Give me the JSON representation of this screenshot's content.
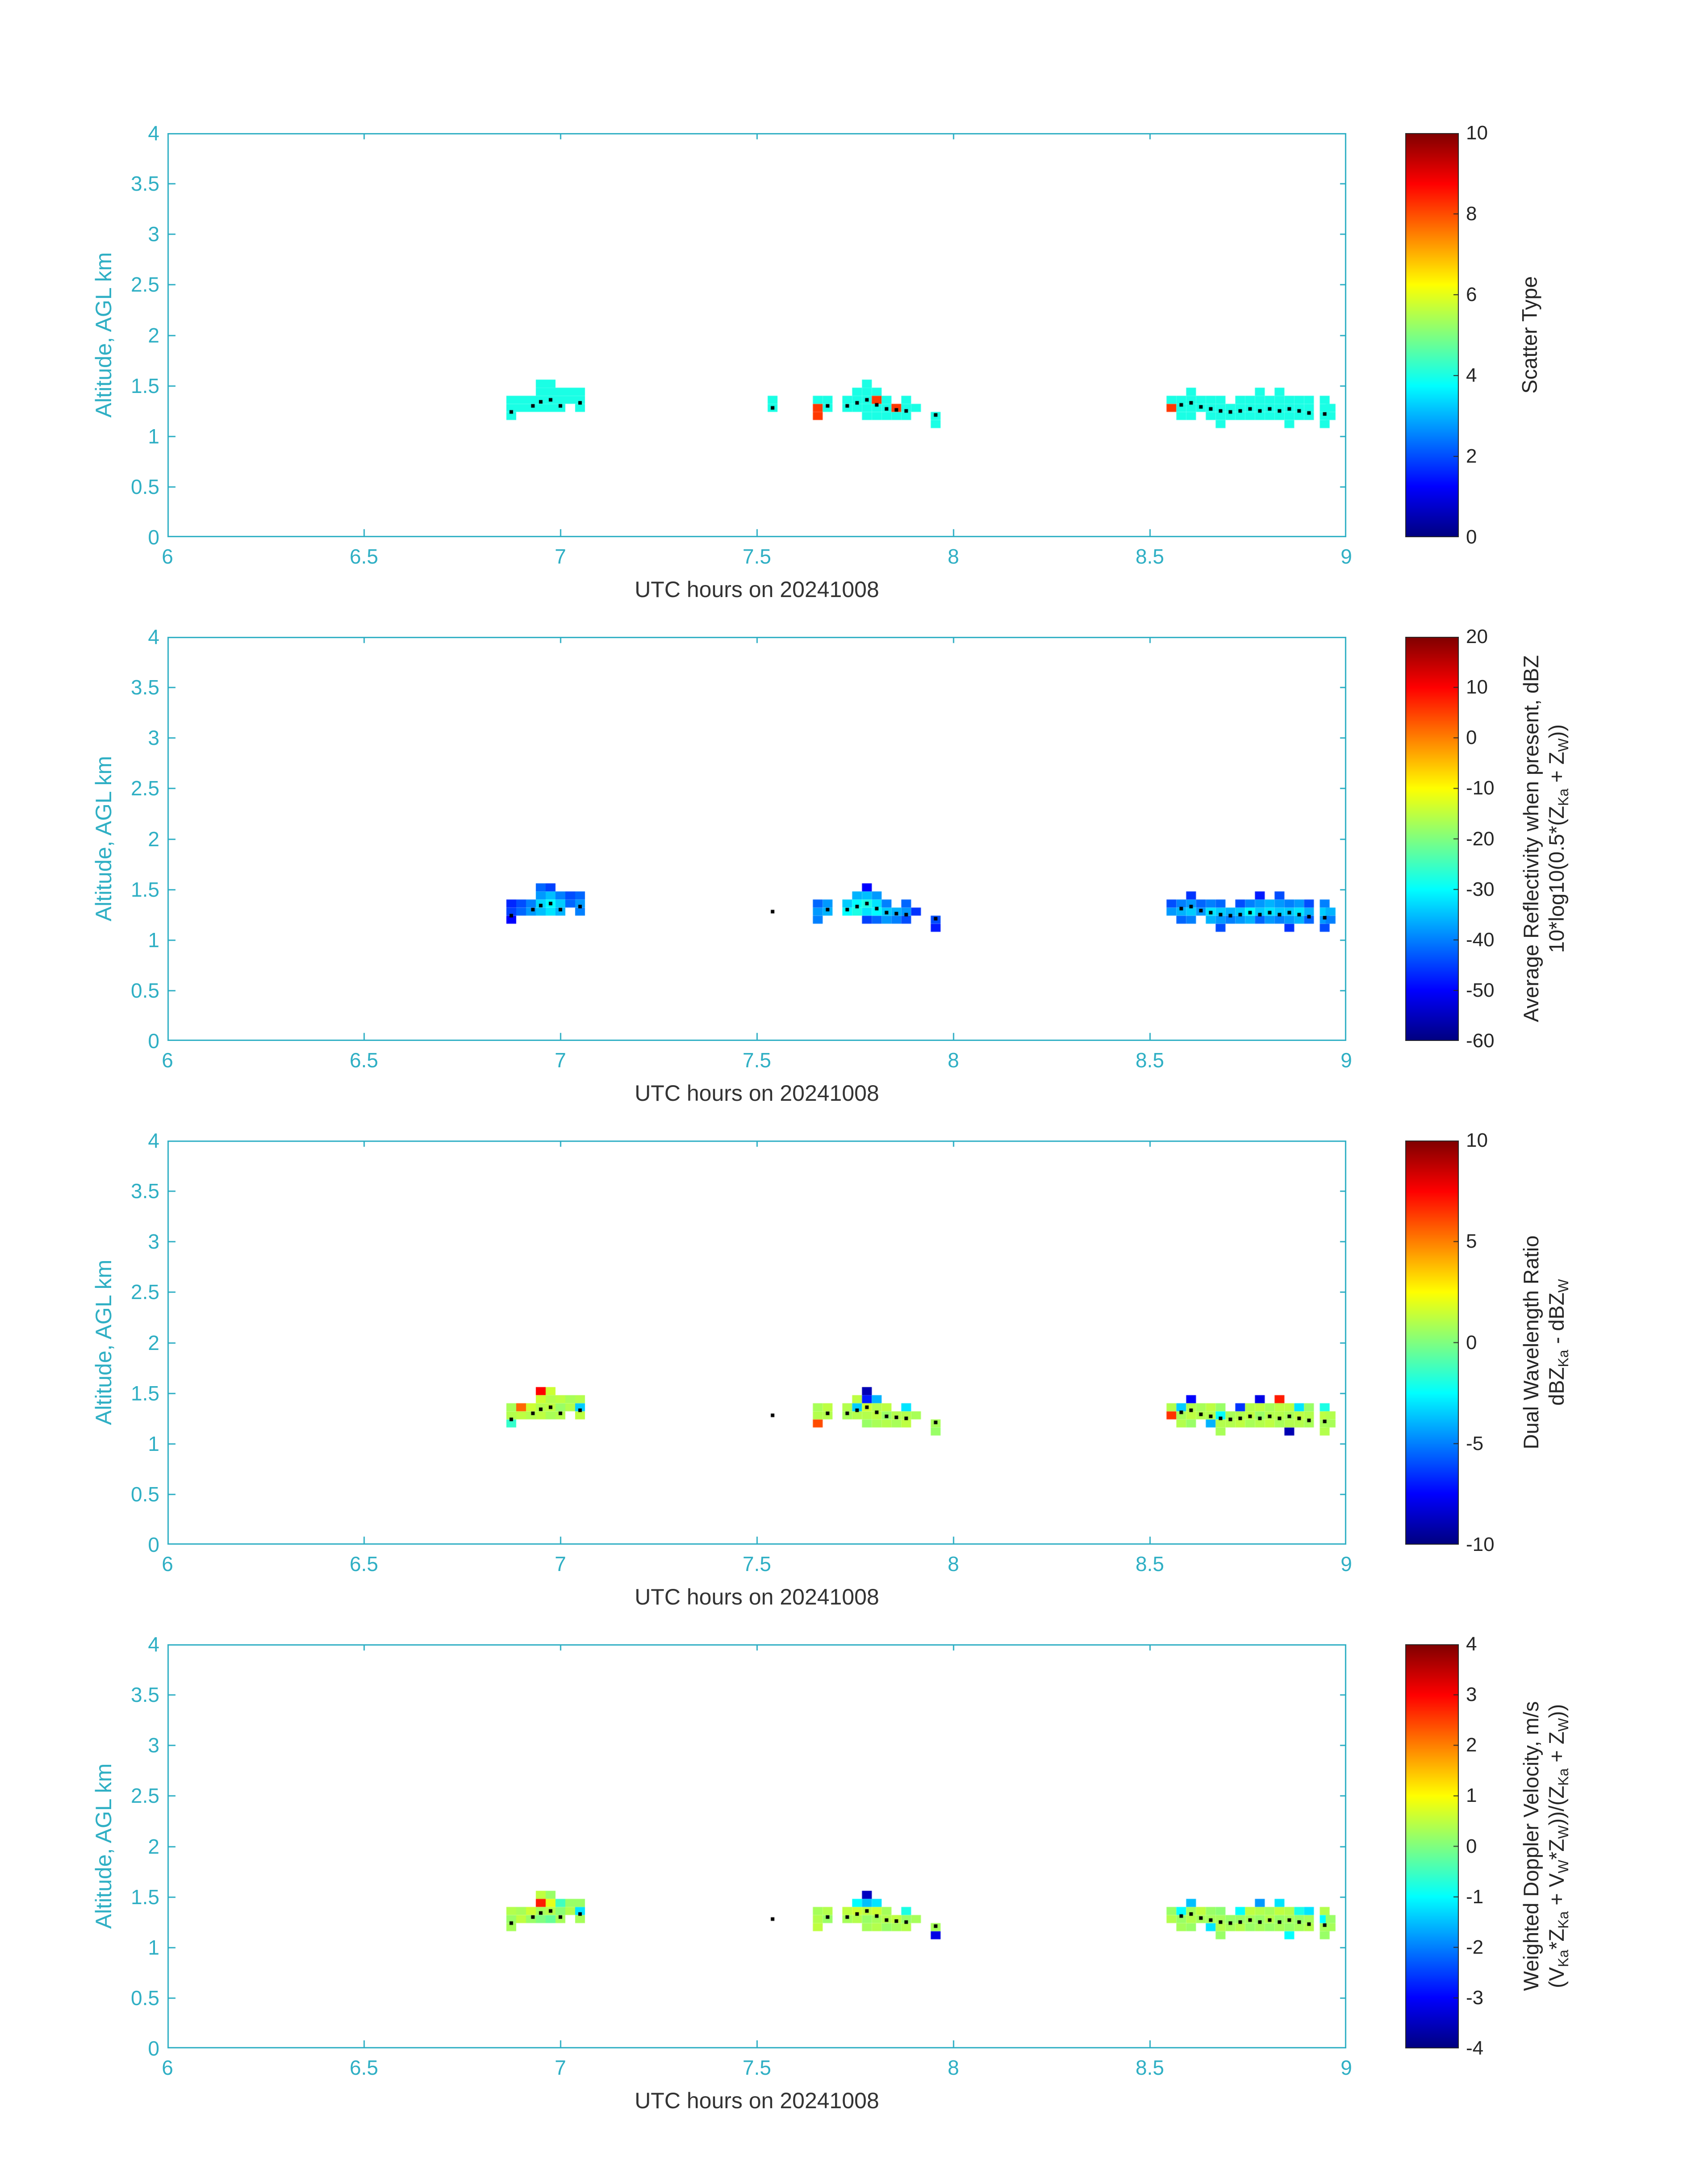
{
  "figure": {
    "background": "#ffffff",
    "axis_color": "#2fafc4",
    "xlabel_color": "#333333",
    "colorbar_text_color": "#262626",
    "dot_color": "#000000"
  },
  "chart_data": {
    "type": "heatmap",
    "x_label": "UTC hours on 20241008",
    "y_label": "Altitude, AGL km",
    "x_lim": [
      6,
      9
    ],
    "y_lim": [
      0,
      4
    ],
    "x_ticks": [
      "6",
      "6.5",
      "7",
      "7.5",
      "8",
      "8.5",
      "9"
    ],
    "x_tick_vals": [
      6,
      6.5,
      7,
      7.5,
      8,
      8.5,
      9
    ],
    "y_ticks": [
      "0",
      "0.5",
      "1",
      "1.5",
      "2",
      "2.5",
      "3",
      "3.5",
      "4"
    ],
    "y_tick_vals": [
      0,
      0.5,
      1,
      1.5,
      2,
      2.5,
      3,
      3.5,
      4
    ],
    "colormap": "jet",
    "cell_size": {
      "dt": 0.025,
      "dz": 0.08
    },
    "panels": [
      {
        "name": "scatter-type",
        "value_index": 2,
        "clim": [
          0,
          10
        ],
        "cticks": [
          "0",
          "2",
          "4",
          "6",
          "8",
          "10"
        ],
        "ctick_vals": [
          0,
          2,
          4,
          6,
          8,
          10
        ],
        "clabel_lines": [
          [
            {
              "t": "Scatter Type"
            }
          ]
        ]
      },
      {
        "name": "average-reflectivity",
        "value_index": 3,
        "clim": [
          -60,
          20
        ],
        "cticks": [
          "-60",
          "-50",
          "-40",
          "-30",
          "-20",
          "-10",
          "0",
          "10",
          "20"
        ],
        "ctick_vals": [
          -60,
          -50,
          -40,
          -30,
          -20,
          -10,
          0,
          10,
          20
        ],
        "clabel_lines": [
          [
            {
              "t": "Average Reflectivity when present, dBZ"
            }
          ],
          [
            {
              "t": "10*log10(0.5*(Z"
            },
            {
              "s": "Ka"
            },
            {
              "t": " + Z"
            },
            {
              "s": "W"
            },
            {
              "t": "))"
            }
          ]
        ]
      },
      {
        "name": "dual-wavelength-ratio",
        "value_index": 4,
        "clim": [
          -10,
          10
        ],
        "cticks": [
          "-10",
          "-5",
          "0",
          "5",
          "10"
        ],
        "ctick_vals": [
          -10,
          -5,
          0,
          5,
          10
        ],
        "clabel_lines": [
          [
            {
              "t": "Dual Wavelength Ratio"
            }
          ],
          [
            {
              "t": "dBZ"
            },
            {
              "s": "Ka"
            },
            {
              "t": " - dBZ"
            },
            {
              "s": "W"
            }
          ]
        ]
      },
      {
        "name": "weighted-doppler-velocity",
        "value_index": 5,
        "clim": [
          -4,
          4
        ],
        "cticks": [
          "-4",
          "-3",
          "-2",
          "-1",
          "0",
          "1",
          "2",
          "3",
          "4"
        ],
        "ctick_vals": [
          -4,
          -3,
          -2,
          -1,
          0,
          1,
          2,
          3,
          4
        ],
        "clabel_lines": [
          [
            {
              "t": "Weighted Doppler Velocity, m/s"
            }
          ],
          [
            {
              "t": "(V"
            },
            {
              "s": "Ka"
            },
            {
              "t": "*Z"
            },
            {
              "s": "Ka"
            },
            {
              "t": " + V"
            },
            {
              "s": "W"
            },
            {
              "t": "*Z"
            },
            {
              "s": "W"
            },
            {
              "t": "))/(Z"
            },
            {
              "s": "Ka"
            },
            {
              "t": " + Z"
            },
            {
              "s": "W"
            },
            {
              "t": "))"
            }
          ]
        ]
      }
    ],
    "cells": [
      [
        6.875,
        1.2,
        4.0,
        -50,
        -1.5,
        0.3
      ],
      [
        6.875,
        1.28,
        4.0,
        -45,
        1.0,
        0.2
      ],
      [
        6.875,
        1.36,
        4.0,
        -47,
        0.8,
        0.4
      ],
      [
        6.9,
        1.28,
        4.0,
        -42,
        1.2,
        0.5
      ],
      [
        6.9,
        1.36,
        4.0,
        -44,
        5.5,
        0.3
      ],
      [
        6.925,
        1.28,
        4.0,
        -38,
        1.0,
        0.2
      ],
      [
        6.925,
        1.36,
        4.0,
        -40,
        1.5,
        0.6
      ],
      [
        6.95,
        1.28,
        4.0,
        -35,
        1.2,
        0.0
      ],
      [
        6.95,
        1.36,
        4.0,
        -33,
        1.0,
        0.3
      ],
      [
        6.95,
        1.44,
        4.0,
        -38,
        1.5,
        2.8
      ],
      [
        6.95,
        1.52,
        4.0,
        -42,
        7.5,
        0.5
      ],
      [
        6.975,
        1.28,
        4.0,
        -32,
        0.8,
        -0.2
      ],
      [
        6.975,
        1.36,
        4.0,
        -30,
        1.2,
        0.4
      ],
      [
        6.975,
        1.44,
        4.0,
        -35,
        1.0,
        0.8
      ],
      [
        6.975,
        1.52,
        4.0,
        -45,
        1.5,
        0.2
      ],
      [
        7.0,
        1.28,
        4.0,
        -36,
        1.0,
        0.3
      ],
      [
        7.0,
        1.36,
        4.0,
        -34,
        0.5,
        0.1
      ],
      [
        7.0,
        1.44,
        4.0,
        -40,
        1.2,
        -0.5
      ],
      [
        7.025,
        1.36,
        4.0,
        -42,
        1.0,
        0.4
      ],
      [
        7.025,
        1.44,
        4.0,
        -44,
        0.8,
        0.2
      ],
      [
        7.05,
        1.28,
        4.0,
        -40,
        1.2,
        0.3
      ],
      [
        7.05,
        1.36,
        4.0,
        -38,
        -3.5,
        -1.2
      ],
      [
        7.05,
        1.44,
        4.0,
        -42,
        1.0,
        0.2
      ],
      [
        7.54,
        1.28,
        4.0,
        null,
        null,
        null
      ],
      [
        7.54,
        1.36,
        4.0,
        null,
        null,
        null
      ],
      [
        7.655,
        1.2,
        8.2,
        -40,
        6.0,
        0.5
      ],
      [
        7.655,
        1.28,
        8.2,
        -38,
        1.0,
        0.4
      ],
      [
        7.655,
        1.36,
        4.0,
        -42,
        0.8,
        0.3
      ],
      [
        7.68,
        1.28,
        4.0,
        -36,
        1.0,
        0.2
      ],
      [
        7.68,
        1.36,
        4.0,
        -38,
        1.2,
        0.4
      ],
      [
        7.73,
        1.28,
        4.0,
        -30,
        0.8,
        0.3
      ],
      [
        7.73,
        1.36,
        4.0,
        -34,
        1.0,
        0.5
      ],
      [
        7.755,
        1.28,
        4.0,
        -28,
        1.0,
        0.4
      ],
      [
        7.755,
        1.36,
        4.0,
        -30,
        -3.5,
        0.6
      ],
      [
        7.755,
        1.44,
        4.0,
        -36,
        1.2,
        -1.0
      ],
      [
        7.78,
        1.2,
        4.0,
        -45,
        0.5,
        0.3
      ],
      [
        7.78,
        1.28,
        4.0,
        -32,
        1.0,
        0.2
      ],
      [
        7.78,
        1.36,
        4.0,
        -28,
        1.5,
        0.5
      ],
      [
        7.78,
        1.44,
        4.0,
        -35,
        -7.0,
        -1.5
      ],
      [
        7.78,
        1.52,
        4.0,
        -50,
        -9.0,
        -3.5
      ],
      [
        7.805,
        1.2,
        4.0,
        -42,
        0.8,
        0.4
      ],
      [
        7.805,
        1.28,
        4.0,
        -30,
        1.2,
        0.3
      ],
      [
        7.805,
        1.36,
        8.2,
        -32,
        1.0,
        0.6
      ],
      [
        7.805,
        1.44,
        4.0,
        -38,
        -4.0,
        -1.2
      ],
      [
        7.83,
        1.2,
        4.0,
        -38,
        1.0,
        0.2
      ],
      [
        7.83,
        1.28,
        4.0,
        -34,
        0.5,
        0.4
      ],
      [
        7.83,
        1.36,
        4.0,
        -40,
        1.2,
        0.3
      ],
      [
        7.855,
        1.2,
        4.0,
        -40,
        0.8,
        0.3
      ],
      [
        7.855,
        1.28,
        8.2,
        -36,
        1.0,
        0.5
      ],
      [
        7.88,
        1.2,
        4.0,
        -44,
        1.2,
        0.4
      ],
      [
        7.88,
        1.28,
        4.0,
        -38,
        1.0,
        0.2
      ],
      [
        7.88,
        1.36,
        4.0,
        -42,
        -3.0,
        -0.8
      ],
      [
        7.905,
        1.28,
        4.0,
        -46,
        0.8,
        0.3
      ],
      [
        7.955,
        1.12,
        4.0,
        -48,
        0.5,
        -3.2
      ],
      [
        7.955,
        1.2,
        4.0,
        -44,
        0.8,
        0.3
      ],
      [
        8.555,
        1.28,
        8.2,
        -38,
        6.5,
        0.4
      ],
      [
        8.555,
        1.36,
        4.0,
        -44,
        1.0,
        0.2
      ],
      [
        8.58,
        1.2,
        4.0,
        -42,
        1.0,
        0.3
      ],
      [
        8.58,
        1.28,
        4.0,
        -36,
        0.8,
        0.2
      ],
      [
        8.58,
        1.36,
        4.0,
        -40,
        -3.5,
        -1.0
      ],
      [
        8.605,
        1.2,
        4.0,
        -40,
        0.5,
        0.2
      ],
      [
        8.605,
        1.28,
        4.0,
        -34,
        1.2,
        0.4
      ],
      [
        8.605,
        1.36,
        4.0,
        -38,
        1.0,
        0.3
      ],
      [
        8.605,
        1.44,
        4.0,
        -46,
        -7.5,
        -1.5
      ],
      [
        8.63,
        1.28,
        4.0,
        -38,
        1.0,
        0.3
      ],
      [
        8.63,
        1.36,
        4.0,
        -42,
        0.8,
        0.5
      ],
      [
        8.655,
        1.2,
        4.0,
        -36,
        -4.0,
        -1.2
      ],
      [
        8.655,
        1.28,
        4.0,
        -32,
        1.0,
        0.3
      ],
      [
        8.655,
        1.36,
        4.0,
        -40,
        1.2,
        0.2
      ],
      [
        8.68,
        1.12,
        4.0,
        -44,
        0.8,
        0.2
      ],
      [
        8.68,
        1.2,
        4.0,
        -38,
        1.0,
        0.4
      ],
      [
        8.68,
        1.28,
        4.0,
        -34,
        -2.5,
        0.3
      ],
      [
        8.68,
        1.36,
        4.0,
        -42,
        0.5,
        0.1
      ],
      [
        8.705,
        1.2,
        4.0,
        -40,
        1.0,
        0.3
      ],
      [
        8.705,
        1.28,
        4.0,
        -36,
        0.8,
        0.2
      ],
      [
        8.73,
        1.2,
        4.0,
        -38,
        1.2,
        0.4
      ],
      [
        8.73,
        1.28,
        4.0,
        -34,
        1.0,
        0.2
      ],
      [
        8.73,
        1.36,
        4.0,
        -44,
        -6.5,
        -1.0
      ],
      [
        8.755,
        1.2,
        4.0,
        -36,
        0.8,
        0.2
      ],
      [
        8.755,
        1.28,
        4.0,
        -30,
        1.2,
        0.3
      ],
      [
        8.755,
        1.36,
        4.0,
        -40,
        1.0,
        0.5
      ],
      [
        8.78,
        1.2,
        4.0,
        -42,
        1.0,
        0.3
      ],
      [
        8.78,
        1.28,
        4.0,
        -34,
        0.5,
        0.2
      ],
      [
        8.78,
        1.36,
        4.0,
        -38,
        1.2,
        0.4
      ],
      [
        8.78,
        1.44,
        4.0,
        -48,
        -8.0,
        -1.8
      ],
      [
        8.805,
        1.2,
        4.0,
        -38,
        1.2,
        0.2
      ],
      [
        8.805,
        1.28,
        4.0,
        -32,
        1.0,
        0.4
      ],
      [
        8.805,
        1.36,
        4.0,
        -36,
        0.8,
        0.3
      ],
      [
        8.83,
        1.2,
        4.0,
        -40,
        0.8,
        0.3
      ],
      [
        8.83,
        1.28,
        4.0,
        -34,
        1.0,
        0.2
      ],
      [
        8.83,
        1.36,
        4.0,
        -38,
        1.2,
        0.5
      ],
      [
        8.83,
        1.44,
        4.0,
        -44,
        7.0,
        -1.2
      ],
      [
        8.855,
        1.12,
        4.0,
        -46,
        -9.0,
        -1.0
      ],
      [
        8.855,
        1.2,
        4.0,
        -38,
        1.0,
        0.2
      ],
      [
        8.855,
        1.28,
        4.0,
        -34,
        0.8,
        0.3
      ],
      [
        8.855,
        1.36,
        4.0,
        -40,
        1.2,
        0.4
      ],
      [
        8.88,
        1.2,
        4.0,
        -36,
        1.0,
        0.3
      ],
      [
        8.88,
        1.28,
        4.0,
        -32,
        1.2,
        0.2
      ],
      [
        8.88,
        1.36,
        4.0,
        -38,
        -3.0,
        -0.8
      ],
      [
        8.905,
        1.2,
        4.0,
        -42,
        0.8,
        0.4
      ],
      [
        8.905,
        1.28,
        4.0,
        -36,
        1.0,
        0.3
      ],
      [
        8.905,
        1.36,
        4.0,
        -44,
        0.5,
        -1.2
      ],
      [
        8.945,
        1.12,
        4.0,
        -44,
        1.0,
        0.2
      ],
      [
        8.945,
        1.2,
        4.0,
        -38,
        0.8,
        0.3
      ],
      [
        8.945,
        1.28,
        4.0,
        -34,
        1.2,
        -1.0
      ],
      [
        8.945,
        1.36,
        4.0,
        -40,
        -2.0,
        0.4
      ],
      [
        8.96,
        1.2,
        4.0,
        -40,
        0.8,
        0.3
      ],
      [
        8.96,
        1.28,
        4.0,
        -36,
        1.0,
        0.2
      ]
    ],
    "dots": [
      [
        6.875,
        1.24
      ],
      [
        6.93,
        1.3
      ],
      [
        6.95,
        1.34
      ],
      [
        6.975,
        1.36
      ],
      [
        7.0,
        1.3
      ],
      [
        7.05,
        1.33
      ],
      [
        7.54,
        1.28
      ],
      [
        7.68,
        1.3
      ],
      [
        7.73,
        1.3
      ],
      [
        7.755,
        1.33
      ],
      [
        7.78,
        1.36
      ],
      [
        7.805,
        1.31
      ],
      [
        7.83,
        1.27
      ],
      [
        7.855,
        1.26
      ],
      [
        7.88,
        1.25
      ],
      [
        7.955,
        1.21
      ],
      [
        8.58,
        1.31
      ],
      [
        8.605,
        1.33
      ],
      [
        8.63,
        1.29
      ],
      [
        8.655,
        1.27
      ],
      [
        8.68,
        1.25
      ],
      [
        8.705,
        1.24
      ],
      [
        8.73,
        1.25
      ],
      [
        8.755,
        1.27
      ],
      [
        8.78,
        1.25
      ],
      [
        8.805,
        1.27
      ],
      [
        8.83,
        1.25
      ],
      [
        8.855,
        1.27
      ],
      [
        8.88,
        1.25
      ],
      [
        8.905,
        1.23
      ],
      [
        8.945,
        1.22
      ]
    ]
  }
}
